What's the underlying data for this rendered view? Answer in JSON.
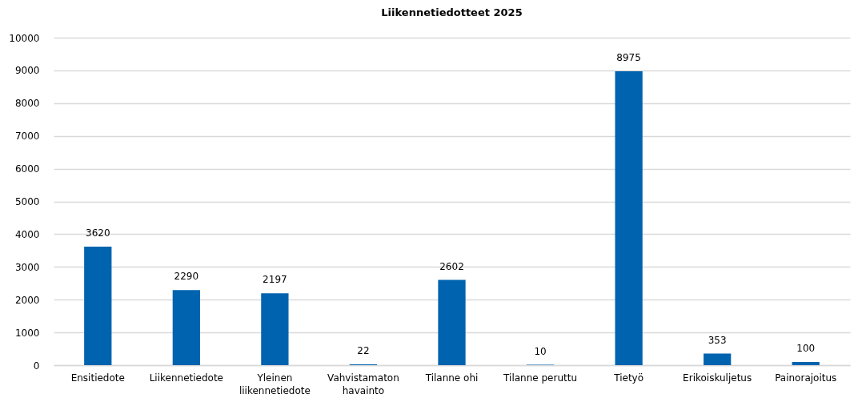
{
  "chart_data": {
    "type": "bar",
    "title": "Liikennetiedotteet 2025",
    "categories": [
      "Ensitiedote",
      "Liikennetiedote",
      "Yleinen liikennetiedote",
      "Vahvistamaton havainto",
      "Tilanne ohi",
      "Tilanne peruttu",
      "Tietyö",
      "Erikoiskuljetus",
      "Painorajoitus"
    ],
    "values": [
      3620,
      2290,
      2197,
      22,
      2602,
      10,
      8975,
      353,
      100
    ],
    "color": "#0063af",
    "ylim": [
      0,
      10000
    ],
    "yticks": [
      0,
      1000,
      2000,
      3000,
      4000,
      5000,
      6000,
      7000,
      8000,
      9000,
      10000
    ],
    "grid": "y",
    "data_labels": true
  }
}
